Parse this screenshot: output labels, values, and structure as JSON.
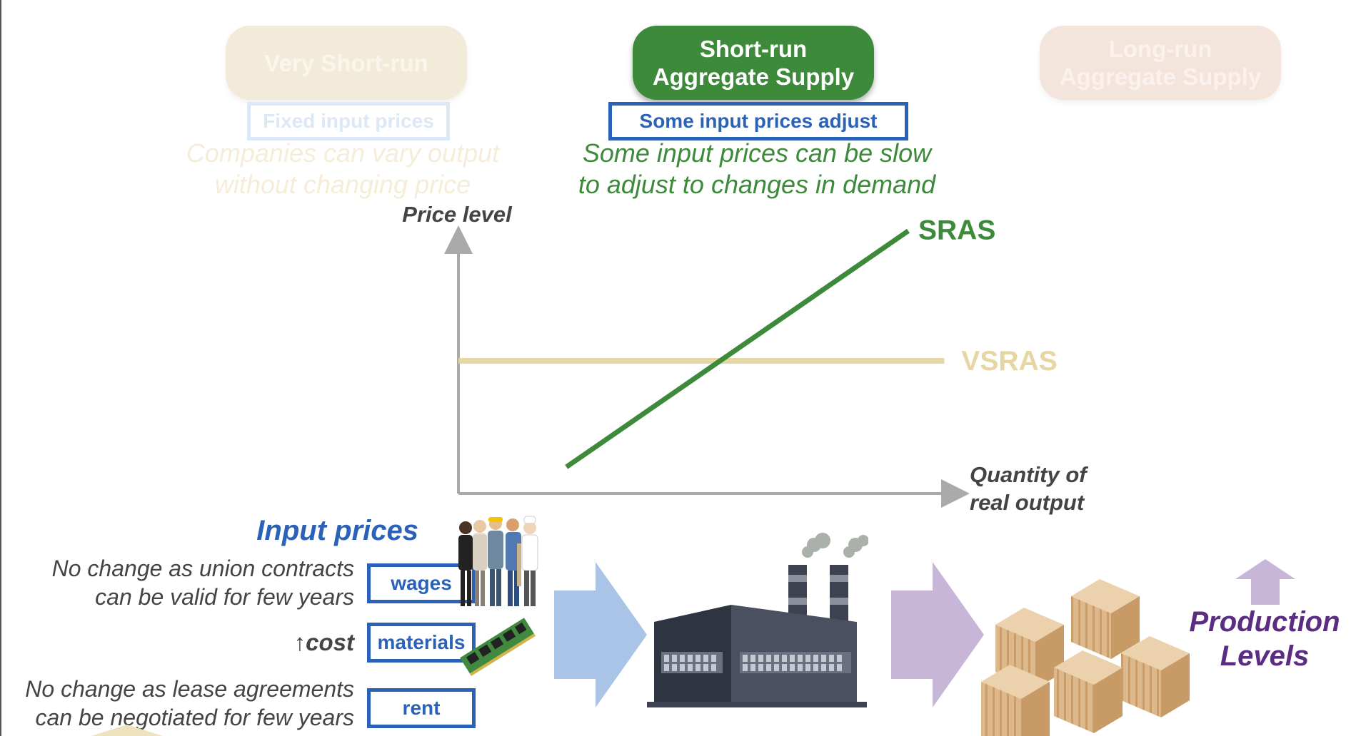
{
  "stages": {
    "very_short_run": {
      "line1": "Very Short-run"
    },
    "short_run": {
      "line1": "Short-run",
      "line2": "Aggregate Supply"
    },
    "long_run": {
      "line1": "Long-run",
      "line2": "Aggregate Supply"
    }
  },
  "tags": {
    "fixed": "Fixed input prices",
    "some_adjust": "Some input prices adjust"
  },
  "captions": {
    "very_short_run": {
      "line1": "Companies can vary output",
      "line2": "without changing price"
    },
    "short_run": {
      "line1": "Some input prices can be slow",
      "line2": "to adjust to changes in demand"
    }
  },
  "chart_data": {
    "type": "line",
    "ylabel": "Price level",
    "xlabel": "Quantity of real output",
    "x_axis_label_lines": [
      "Quantity of",
      "real output"
    ],
    "series": [
      {
        "name": "SRAS",
        "color": "#3c8a3a",
        "x": [
          0.24,
          1.0
        ],
        "y": [
          0.1,
          0.99
        ]
      },
      {
        "name": "VSRAS",
        "color": "#e6d6a4",
        "x": [
          0.0,
          1.08
        ],
        "y": [
          0.5,
          0.5
        ]
      }
    ],
    "xlim": [
      0,
      1.1
    ],
    "ylim": [
      0,
      1.1
    ],
    "grid": false
  },
  "inputs": {
    "title": "Input prices",
    "wages_note": {
      "line1": "No change as union contracts",
      "line2": "can be valid for few years"
    },
    "materials_note_arrow": "↑",
    "materials_note": "cost",
    "rent_note": {
      "line1": "No change as lease agreements",
      "line2": "can be negotiated for few years"
    },
    "wages_label": "wages",
    "materials_label": "materials",
    "rent_label": "rent"
  },
  "production": {
    "line1": "Production",
    "line2": "Levels"
  },
  "colors": {
    "green": "#3c8a3a",
    "blue": "#2b62b7",
    "tan": "#e6d6a4",
    "purple": "#5a2d82",
    "arrow_blue": "#a9c4e6",
    "arrow_purple": "#c7b6d8"
  },
  "icons": [
    "workers-icon",
    "circuit-board-icon",
    "factory-icon",
    "boxes-icon",
    "up-arrow-icon"
  ]
}
